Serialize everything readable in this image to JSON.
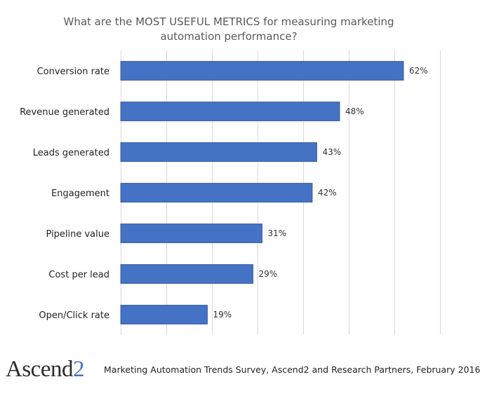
{
  "chart_data": {
    "type": "bar",
    "orientation": "horizontal",
    "title": "What are the MOST USEFUL METRICS for measuring marketing automation performance?",
    "title_lines": [
      "What are the MOST USEFUL METRICS for measuring marketing",
      "automation performance?"
    ],
    "categories": [
      "Conversion rate",
      "Revenue generated",
      "Leads generated",
      "Engagement",
      "Pipeline value",
      "Cost per lead",
      "Open/Click rate"
    ],
    "values": [
      62,
      48,
      43,
      42,
      31,
      29,
      19
    ],
    "value_labels": [
      "62%",
      "48%",
      "43%",
      "42%",
      "31%",
      "29%",
      "19%"
    ],
    "xlim": [
      0,
      70
    ],
    "grid": true,
    "bar_color": "#4472c4"
  },
  "footer": {
    "logo_text": "Ascend",
    "logo_number": "2",
    "source": "Marketing Automation Trends Survey, Ascend2 and Research Partners, February 2016"
  }
}
